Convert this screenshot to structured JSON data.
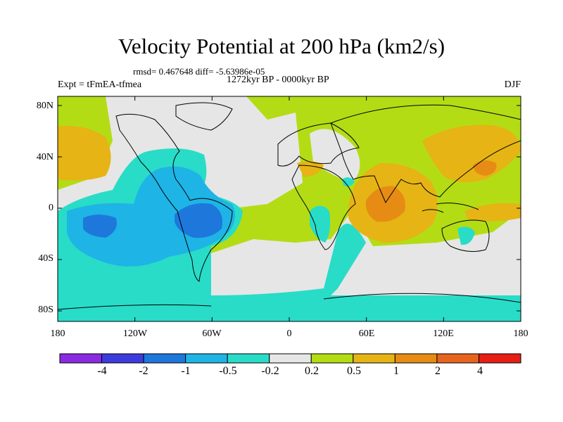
{
  "title": "Velocity Potential at 200 hPa (km2/s)",
  "stats": "rmsd= 0.467648 diff= -5.63986e-05",
  "period": "1272kyr BP - 0000kyr BP",
  "experiment": "Expt = tFmEA-tfmea",
  "season": "DJF",
  "y_ticks": [
    "80N",
    "40N",
    "0",
    "40S",
    "80S"
  ],
  "x_ticks": [
    "180",
    "120W",
    "60W",
    "0",
    "60E",
    "120E",
    "180"
  ],
  "colorbar": {
    "colors": [
      "#8a2be2",
      "#3c3cdc",
      "#1e78dc",
      "#1eb4e6",
      "#28dcc8",
      "#e6e6e6",
      "#b4dc14",
      "#e6b414",
      "#e68c14",
      "#e6641e",
      "#e61e14"
    ],
    "labels": [
      "-4",
      "-2",
      "-1",
      "-0.5",
      "-0.2",
      "0.2",
      "0.5",
      "1",
      "2",
      "4"
    ]
  },
  "legend_colors": {
    "strong_neg": "#1e78dc",
    "mod_neg": "#1eb4e6",
    "weak_neg": "#28dcc8",
    "neutral": "#e6e6e6",
    "weak_pos": "#b4dc14",
    "mod_pos": "#e6b414",
    "strong_pos": "#e68c14"
  }
}
